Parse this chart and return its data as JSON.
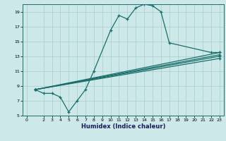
{
  "xlabel": "Humidex (Indice chaleur)",
  "bg_color": "#cce8e8",
  "grid_color": "#aacccc",
  "line_color": "#1a6e6a",
  "xlim": [
    -0.5,
    23.5
  ],
  "ylim": [
    5,
    20
  ],
  "xticks": [
    0,
    2,
    3,
    4,
    5,
    6,
    7,
    8,
    9,
    10,
    11,
    12,
    13,
    14,
    15,
    16,
    17,
    18,
    19,
    20,
    21,
    22,
    23
  ],
  "yticks": [
    5,
    7,
    9,
    11,
    13,
    15,
    17,
    19
  ],
  "line1_x": [
    1,
    2,
    3,
    4,
    5,
    6,
    7,
    8,
    10,
    11,
    12,
    13,
    14,
    15,
    16,
    17,
    22,
    23
  ],
  "line1_y": [
    8.5,
    8.0,
    8.0,
    7.5,
    5.5,
    7.0,
    8.5,
    11.0,
    16.5,
    18.5,
    18.0,
    19.5,
    20.0,
    19.8,
    19.0,
    14.8,
    13.5,
    13.5
  ],
  "line2_x": [
    1,
    23
  ],
  "line2_y": [
    8.5,
    13.5
  ],
  "line3_x": [
    1,
    23
  ],
  "line3_y": [
    8.5,
    13.2
  ],
  "line4_x": [
    1,
    23
  ],
  "line4_y": [
    8.5,
    13.0
  ],
  "line5_x": [
    1,
    23
  ],
  "line5_y": [
    8.5,
    12.7
  ]
}
